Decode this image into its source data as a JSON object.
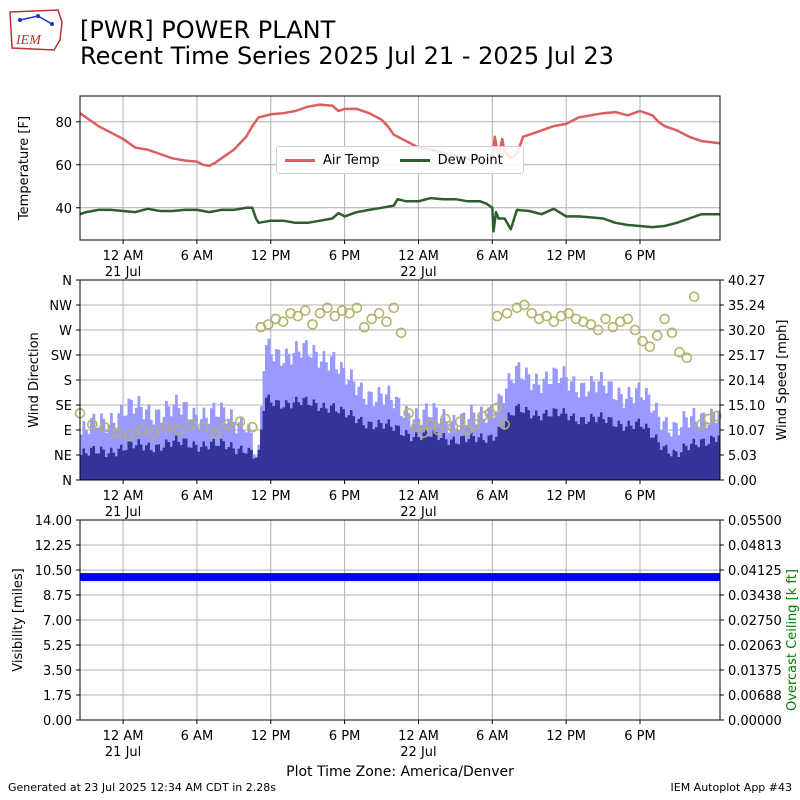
{
  "header": {
    "title_line1": "[PWR] POWER PLANT",
    "title_line2": "Recent Time Series 2025 Jul 21 - 2025 Jul 23",
    "logo_text": "IEM"
  },
  "footer": {
    "generated": "Generated at 23 Jul 2025 12:34 AM CDT in 2.28s",
    "app": "IEM Autoplot App #43",
    "timezone": "Plot Time Zone: America/Denver"
  },
  "colors": {
    "air_temp": "#d9605f",
    "dew_point": "#2e5e2e",
    "gust_bar": "#9999ff",
    "wind_bar": "#333399",
    "wind_dir": "#b3b36b",
    "visibility": "#0000ff",
    "ceiling_label": "#008000",
    "grid": "#b0b0b0"
  },
  "chart_data": [
    {
      "type": "line",
      "ylabel": "Temperature [F]",
      "ylim": [
        25,
        92
      ],
      "yticks": [
        "40",
        "60",
        "80"
      ],
      "xlim": [
        -3.5,
        48.5
      ],
      "x_ticks": [
        {
          "hour": 0,
          "label": "12 AM",
          "date": "21 Jul"
        },
        {
          "hour": 6,
          "label": "6 AM",
          "date": ""
        },
        {
          "hour": 12,
          "label": "12 PM",
          "date": ""
        },
        {
          "hour": 18,
          "label": "6 PM",
          "date": ""
        },
        {
          "hour": 24,
          "label": "12 AM",
          "date": "22 Jul"
        },
        {
          "hour": 30,
          "label": "6 AM",
          "date": ""
        },
        {
          "hour": 36,
          "label": "12 PM",
          "date": ""
        },
        {
          "hour": 42,
          "label": "6 PM",
          "date": ""
        }
      ],
      "grid": true,
      "legend": "upper-center",
      "series": [
        {
          "name": "Air Temp",
          "points": [
            [
              -3.5,
              84
            ],
            [
              -3,
              82
            ],
            [
              -2,
              78
            ],
            [
              -1,
              75
            ],
            [
              0,
              72
            ],
            [
              1,
              68
            ],
            [
              2,
              67
            ],
            [
              3,
              65
            ],
            [
              4,
              63
            ],
            [
              5,
              62
            ],
            [
              6,
              61.5
            ],
            [
              6.5,
              60
            ],
            [
              7,
              59.5
            ],
            [
              7.5,
              61
            ],
            [
              8,
              63
            ],
            [
              9,
              67
            ],
            [
              10,
              73
            ],
            [
              10.5,
              78
            ],
            [
              11,
              82
            ],
            [
              12,
              83.5
            ],
            [
              13,
              84
            ],
            [
              14,
              85
            ],
            [
              15,
              87
            ],
            [
              16,
              88
            ],
            [
              17,
              87.5
            ],
            [
              17.5,
              85
            ],
            [
              18,
              86
            ],
            [
              19,
              86
            ],
            [
              20,
              84
            ],
            [
              21,
              81
            ],
            [
              21.5,
              78
            ],
            [
              22,
              74
            ],
            [
              23,
              71
            ],
            [
              24,
              68
            ],
            [
              25,
              67
            ],
            [
              26,
              65.5
            ],
            [
              27,
              64
            ],
            [
              28,
              63
            ],
            [
              29,
              62
            ],
            [
              30,
              62.5
            ],
            [
              30.2,
              73
            ],
            [
              30.5,
              64
            ],
            [
              30.8,
              72
            ],
            [
              31,
              66
            ],
            [
              31.5,
              63
            ],
            [
              32,
              65
            ],
            [
              32.5,
              73
            ],
            [
              33,
              74
            ],
            [
              34,
              76
            ],
            [
              35,
              78
            ],
            [
              36,
              79
            ],
            [
              37,
              82
            ],
            [
              38,
              83
            ],
            [
              39,
              84
            ],
            [
              40,
              84.5
            ],
            [
              41,
              83
            ],
            [
              42,
              85
            ],
            [
              43,
              83
            ],
            [
              43.5,
              80
            ],
            [
              44,
              78
            ],
            [
              45,
              76
            ],
            [
              46,
              73
            ],
            [
              47,
              71
            ],
            [
              48.5,
              70
            ]
          ]
        },
        {
          "name": "Dew Point",
          "points": [
            [
              -3.5,
              37
            ],
            [
              -3,
              38
            ],
            [
              -2,
              39
            ],
            [
              -1,
              39
            ],
            [
              0,
              38.5
            ],
            [
              1,
              38
            ],
            [
              2,
              39.5
            ],
            [
              3,
              38.5
            ],
            [
              4,
              38.5
            ],
            [
              5,
              39
            ],
            [
              6,
              39
            ],
            [
              7,
              38
            ],
            [
              8,
              39
            ],
            [
              9,
              39
            ],
            [
              10,
              40
            ],
            [
              10.5,
              40
            ],
            [
              10.8,
              35
            ],
            [
              11,
              33
            ],
            [
              12,
              34
            ],
            [
              13,
              34
            ],
            [
              14,
              33
            ],
            [
              15,
              33
            ],
            [
              16,
              34
            ],
            [
              17,
              35
            ],
            [
              17.5,
              37.5
            ],
            [
              18,
              36
            ],
            [
              19,
              38
            ],
            [
              20,
              39
            ],
            [
              21,
              40
            ],
            [
              22,
              41
            ],
            [
              22.3,
              44
            ],
            [
              23,
              43
            ],
            [
              24,
              43
            ],
            [
              25,
              44.5
            ],
            [
              26,
              44
            ],
            [
              27,
              44
            ],
            [
              28,
              43
            ],
            [
              29,
              43
            ],
            [
              29.5,
              42
            ],
            [
              30,
              40
            ],
            [
              30.1,
              29
            ],
            [
              30.3,
              38
            ],
            [
              30.5,
              35
            ],
            [
              31,
              35
            ],
            [
              31.5,
              30
            ],
            [
              32,
              39
            ],
            [
              33,
              38.5
            ],
            [
              34,
              37
            ],
            [
              35,
              39.5
            ],
            [
              36,
              36
            ],
            [
              37,
              36
            ],
            [
              38,
              35.5
            ],
            [
              39,
              35
            ],
            [
              40,
              33
            ],
            [
              41,
              32
            ],
            [
              42,
              31.5
            ],
            [
              43,
              31
            ],
            [
              44,
              31.5
            ],
            [
              45,
              33
            ],
            [
              46,
              35
            ],
            [
              47,
              37
            ],
            [
              48.5,
              37
            ]
          ]
        }
      ]
    },
    {
      "type": "bar",
      "ylabel": "Wind Direction",
      "ylabel_right": "Wind Speed [mph]",
      "dir_ticks": [
        "N",
        "NE",
        "E",
        "SE",
        "S",
        "SW",
        "W",
        "NW",
        "N"
      ],
      "speed_ticks": [
        "0.00",
        "5.03",
        "10.07",
        "15.10",
        "20.14",
        "25.17",
        "30.20",
        "35.24",
        "40.27"
      ],
      "ylim_speed": [
        0,
        40.27
      ],
      "ylim_direction": [
        0,
        360
      ],
      "grid": true,
      "series": [
        {
          "name": "Wind Speed",
          "segments": [
            [
              -3.5,
              5
            ],
            [
              0,
              6.5
            ],
            [
              5,
              7.5
            ],
            [
              10,
              6.5
            ],
            [
              11,
              4
            ],
            [
              11.5,
              16
            ],
            [
              17,
              15
            ],
            [
              18,
              13
            ],
            [
              24,
              9
            ],
            [
              29,
              8
            ],
            [
              30,
              9
            ],
            [
              32,
              14
            ],
            [
              36,
              13
            ],
            [
              42,
              11
            ],
            [
              45,
              5
            ],
            [
              47,
              8
            ],
            [
              48.5,
              9
            ]
          ]
        },
        {
          "name": "Wind Gust",
          "segments": [
            [
              -3.5,
              9
            ],
            [
              0,
              14
            ],
            [
              5,
              14
            ],
            [
              10,
              12
            ],
            [
              11,
              3
            ],
            [
              11.5,
              26
            ],
            [
              17,
              25
            ],
            [
              18,
              20
            ],
            [
              24,
              13
            ],
            [
              29,
              12
            ],
            [
              30,
              15
            ],
            [
              32,
              21
            ],
            [
              36,
              20
            ],
            [
              42,
              17
            ],
            [
              45,
              10
            ],
            [
              47,
              13
            ],
            [
              48.5,
              14
            ]
          ]
        },
        {
          "name": "Wind Direction",
          "points_deg": [
            [
              -3.5,
              120
            ],
            [
              -2.5,
              100
            ],
            [
              -1.5,
              95
            ],
            [
              -0.5,
              85
            ],
            [
              0.5,
              80
            ],
            [
              1.5,
              90
            ],
            [
              2.5,
              85
            ],
            [
              3.5,
              95
            ],
            [
              4.5,
              90
            ],
            [
              5.5,
              100
            ],
            [
              6.5,
              95
            ],
            [
              7.5,
              85
            ],
            [
              8.5,
              100
            ],
            [
              9.5,
              105
            ],
            [
              10.5,
              95
            ],
            [
              11.2,
              275
            ],
            [
              11.8,
              280
            ],
            [
              12.4,
              290
            ],
            [
              13,
              285
            ],
            [
              13.6,
              300
            ],
            [
              14.2,
              295
            ],
            [
              14.8,
              305
            ],
            [
              15.4,
              280
            ],
            [
              16,
              300
            ],
            [
              16.6,
              310
            ],
            [
              17.2,
              295
            ],
            [
              17.8,
              305
            ],
            [
              18.4,
              300
            ],
            [
              19,
              310
            ],
            [
              19.6,
              275
            ],
            [
              20.2,
              290
            ],
            [
              20.8,
              300
            ],
            [
              21.4,
              285
            ],
            [
              22,
              310
            ],
            [
              22.6,
              265
            ],
            [
              23.2,
              120
            ],
            [
              23.8,
              95
            ],
            [
              24.4,
              85
            ],
            [
              25,
              100
            ],
            [
              25.6,
              90
            ],
            [
              26.2,
              110
            ],
            [
              26.8,
              95
            ],
            [
              27.4,
              105
            ],
            [
              28,
              90
            ],
            [
              28.6,
              100
            ],
            [
              29.2,
              115
            ],
            [
              29.8,
              120
            ],
            [
              30.4,
              130
            ],
            [
              31,
              100
            ],
            [
              30.4,
              295
            ],
            [
              31.2,
              300
            ],
            [
              32,
              310
            ],
            [
              32.6,
              315
            ],
            [
              33.2,
              300
            ],
            [
              33.8,
              290
            ],
            [
              34.4,
              295
            ],
            [
              35,
              285
            ],
            [
              35.6,
              295
            ],
            [
              36.2,
              300
            ],
            [
              36.8,
              290
            ],
            [
              37.4,
              285
            ],
            [
              38,
              280
            ],
            [
              38.6,
              270
            ],
            [
              39.2,
              290
            ],
            [
              39.8,
              275
            ],
            [
              40.4,
              285
            ],
            [
              41,
              290
            ],
            [
              41.6,
              270
            ],
            [
              42.2,
              250
            ],
            [
              42.8,
              240
            ],
            [
              43.4,
              260
            ],
            [
              44,
              290
            ],
            [
              44.6,
              265
            ],
            [
              45.2,
              230
            ],
            [
              45.8,
              220
            ],
            [
              46.4,
              330
            ],
            [
              47,
              100
            ],
            [
              47.6,
              110
            ],
            [
              48.2,
              115
            ]
          ]
        }
      ]
    },
    {
      "type": "line",
      "ylabel": "Visibility [miles]",
      "ylabel_right": "Overcast Ceiling [k ft]",
      "ylim": [
        0,
        14
      ],
      "yticks": [
        "0.00",
        "1.75",
        "3.50",
        "5.25",
        "7.00",
        "8.75",
        "10.50",
        "12.25",
        "14.00"
      ],
      "right_ticks": [
        "0.00000",
        "0.00688",
        "0.01375",
        "0.02063",
        "0.02750",
        "0.03438",
        "0.04125",
        "0.04813",
        "0.05500"
      ],
      "ylim_right": [
        0,
        0.055
      ],
      "grid": true,
      "series": [
        {
          "name": "Visibility",
          "points": [
            [
              -3.5,
              10
            ],
            [
              48.5,
              10
            ]
          ]
        }
      ]
    }
  ]
}
